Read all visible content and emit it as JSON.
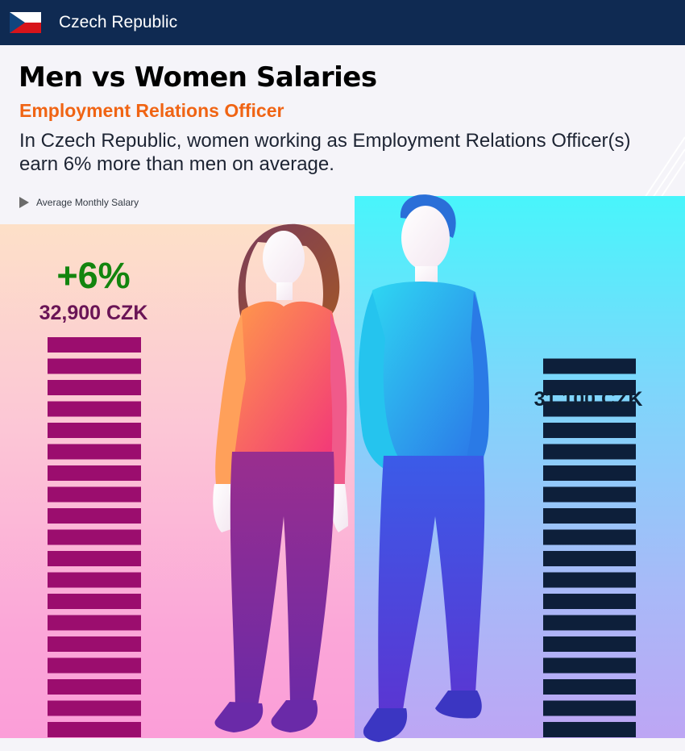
{
  "header": {
    "country": "Czech Republic",
    "flag_icon": "czech-flag-icon"
  },
  "title": "Men vs Women Salaries",
  "subtitle": "Employment Relations Officer",
  "description": "In Czech Republic, women working as Employment Relations Officer(s) earn 6% more than men on average.",
  "legend_label": "Average Monthly Salary",
  "difference_label": "+6%",
  "colors": {
    "header_bg": "#0f2a52",
    "subtitle": "#f06414",
    "difference": "#13850e",
    "women_bar": "#9b0d6e",
    "men_bar": "#0d1f3a"
  },
  "chart_data": {
    "type": "bar",
    "categories": [
      "Women",
      "Men"
    ],
    "values": [
      32900,
      31100
    ],
    "value_labels": [
      "32,900 CZK",
      "31,100 CZK"
    ],
    "unit": "CZK",
    "title": "Men vs Women Salaries"
  }
}
